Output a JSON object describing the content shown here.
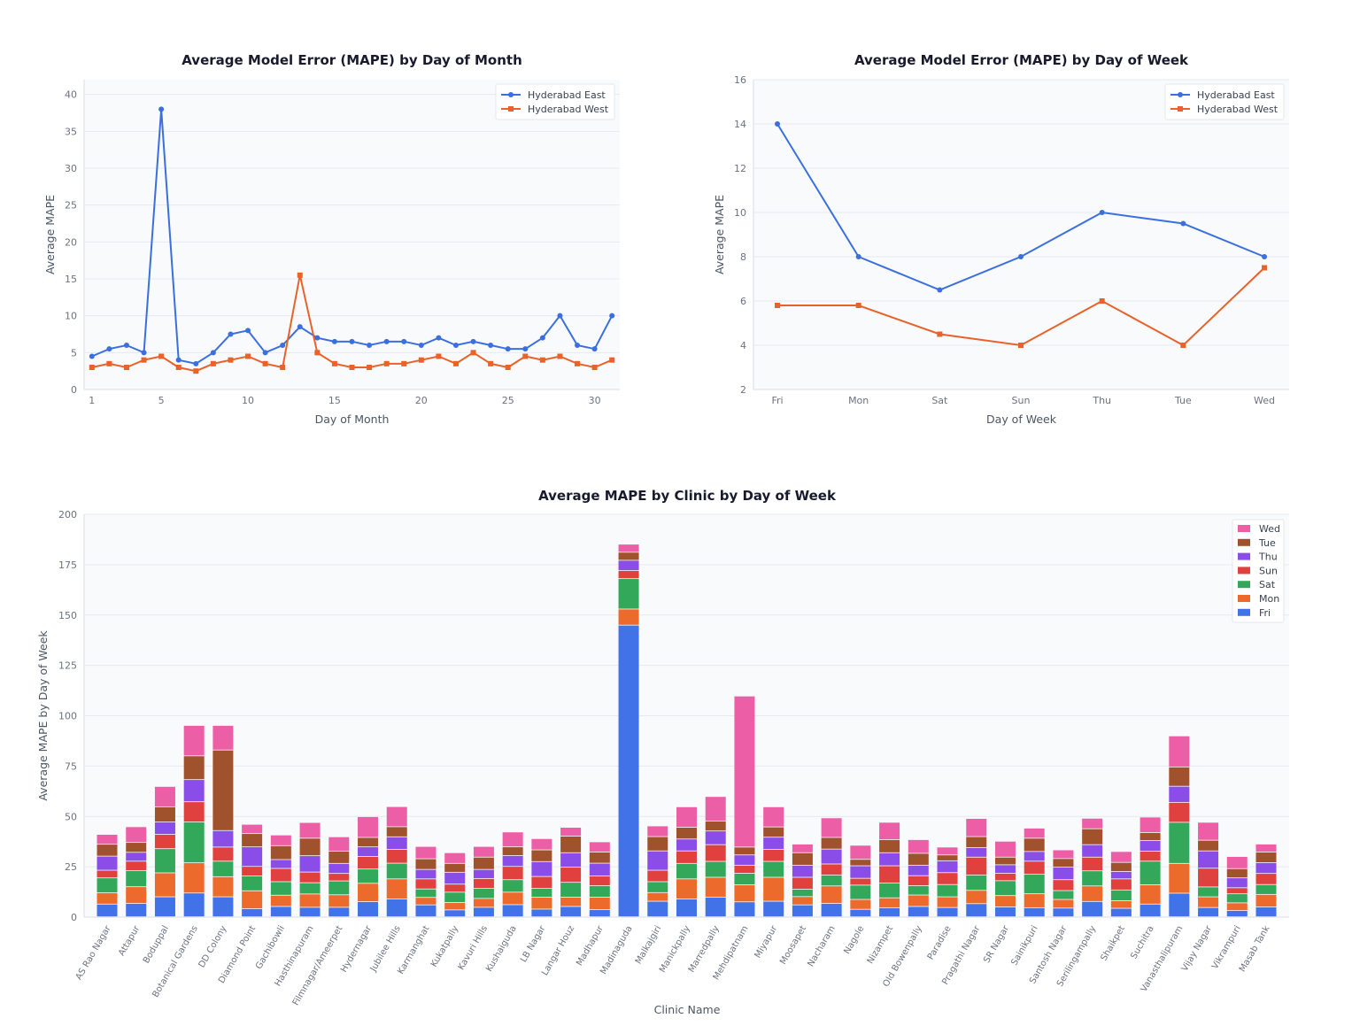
{
  "chart_data": [
    {
      "type": "line",
      "title": "Average Model Error (MAPE) by Day of Month",
      "xlabel": "Day of Month",
      "ylabel": "Average MAPE",
      "xlim": [
        0.55,
        31.45
      ],
      "ylim": [
        0,
        42
      ],
      "xticks": [
        1,
        5,
        10,
        15,
        20,
        25,
        30
      ],
      "yticks": [
        0,
        5,
        10,
        15,
        20,
        25,
        30,
        35,
        40
      ],
      "grid": true,
      "legend": "top-right",
      "x": [
        1,
        2,
        3,
        4,
        5,
        6,
        7,
        8,
        9,
        10,
        11,
        12,
        13,
        14,
        15,
        16,
        17,
        18,
        19,
        20,
        21,
        22,
        23,
        24,
        25,
        26,
        27,
        28,
        29,
        30,
        31
      ],
      "series": [
        {
          "name": "Hyderabad East",
          "color": "#3b6fe0",
          "marker": "circle",
          "values": [
            4.5,
            5.5,
            6,
            5,
            38,
            4,
            3.5,
            5,
            7.5,
            8,
            5,
            6,
            8.5,
            7,
            6.5,
            6.5,
            6,
            6.5,
            6.5,
            6,
            7,
            6,
            6.5,
            6,
            5.5,
            5.5,
            7,
            10,
            6,
            5.5,
            10
          ]
        },
        {
          "name": "Hyderabad West",
          "color": "#e8622a",
          "marker": "square",
          "values": [
            3,
            3.5,
            3,
            4,
            4.5,
            3,
            2.5,
            3.5,
            4,
            4.5,
            3.5,
            3,
            15.5,
            5,
            3.5,
            3,
            3,
            3.5,
            3.5,
            4,
            4.5,
            3.5,
            5,
            3.5,
            3,
            4.5,
            4,
            4.5,
            3.5,
            3,
            4
          ]
        }
      ]
    },
    {
      "type": "line",
      "title": "Average Model Error (MAPE) by Day of Week",
      "xlabel": "Day of Week",
      "ylabel": "Average MAPE",
      "ylim": [
        2,
        16
      ],
      "yticks": [
        2,
        4,
        6,
        8,
        10,
        12,
        14,
        16
      ],
      "grid": true,
      "legend": "top-right",
      "categories": [
        "Fri",
        "Mon",
        "Sat",
        "Sun",
        "Thu",
        "Tue",
        "Wed"
      ],
      "series": [
        {
          "name": "Hyderabad East",
          "color": "#3b6fe0",
          "marker": "circle",
          "values": [
            14,
            8,
            6.5,
            8,
            10,
            9.5,
            8
          ]
        },
        {
          "name": "Hyderabad West",
          "color": "#e8622a",
          "marker": "square",
          "values": [
            5.8,
            5.8,
            4.5,
            4,
            6,
            4,
            7.5
          ]
        }
      ]
    },
    {
      "type": "bar",
      "stacked": true,
      "title": "Average MAPE by Clinic by Day of Week",
      "xlabel": "Clinic Name",
      "ylabel": "Average MAPE by Day of Week",
      "ylim": [
        0,
        200
      ],
      "yticks": [
        0,
        25,
        50,
        75,
        100,
        125,
        150,
        175,
        200
      ],
      "grid": true,
      "legend": "top-right",
      "legend_order": [
        "Wed",
        "Tue",
        "Thu",
        "Sun",
        "Sat",
        "Mon",
        "Fri"
      ],
      "categories": [
        "AS Rao Nagar",
        "Attapur",
        "Boduppal",
        "Botanical Gardens",
        "DD Colony",
        "Diamond Point",
        "Gachibowli",
        "Hasthinapuram",
        "Filmnagar/Ameerpet",
        "Hydernagar",
        "Jubilee Hills",
        "Karmanghat",
        "Kukatpally",
        "Kavuri Hills",
        "Kushaiguda",
        "LB Nagar",
        "Langar Houz",
        "Madhapur",
        "Madinaguda",
        "Malkajgiri",
        "Manickpally",
        "Marredpally",
        "Mehdipatnam",
        "Miyapur",
        "Moosapet",
        "Nacharam",
        "Nagole",
        "Nizampet",
        "Old Bowenpally",
        "Paradise",
        "Pragathi Nagar",
        "SR Nagar",
        "Sainikpuri",
        "Santosh Nagar",
        "Serilingampally",
        "Shaikpet",
        "Suchitra",
        "Vanasthalipuram",
        "Vijay Nagar",
        "Vikrampuri",
        "Masab Tank"
      ],
      "series": [
        {
          "name": "Fri",
          "color": "#4272e8",
          "values": [
            6.3,
            6.6,
            9.9,
            11.8,
            9.9,
            4,
            5.1,
            4.7,
            4.7,
            7.5,
            8.8,
            5.9,
            3.4,
            4.7,
            6,
            3.8,
            5.1,
            3.5,
            144.8,
            7.7,
            8.8,
            9.7,
            7.4,
            7.7,
            5.9,
            6.6,
            3.7,
            4.5,
            5.1,
            4.6,
            6.5,
            4.9,
            4.5,
            4.3,
            7.6,
            4.2,
            6.3,
            11.7,
            4.6,
            3.1,
            4.9
          ]
        },
        {
          "name": "Mon",
          "color": "#ec6a2c",
          "values": [
            5.6,
            8.3,
            11.9,
            15,
            10,
            8.9,
            5.6,
            6.6,
            6.2,
            9.1,
            10,
            3.7,
            3.7,
            4.4,
            6.2,
            5.9,
            4.6,
            6.2,
            8,
            4.3,
            10,
            9.9,
            8.5,
            11.9,
            4.1,
            8.7,
            4.9,
            4.9,
            5.7,
            5.3,
            6.6,
            5.6,
            6.9,
            4.3,
            7.7,
            3.8,
            9.6,
            14.8,
            5.3,
            3.8,
            6.2
          ]
        },
        {
          "name": "Sat",
          "color": "#33a85a",
          "values": [
            7.4,
            8,
            12,
            20.3,
            7.7,
            7.4,
            6.7,
            5.6,
            6.9,
            7.1,
            7.8,
            4.2,
            5.1,
            5,
            6.2,
            4.4,
            7.4,
            5.7,
            15.1,
            5.4,
            7.7,
            7.9,
            5.7,
            7.9,
            3.7,
            5.4,
            7.1,
            7.3,
            4.6,
            6.1,
            7.6,
            7.4,
            9.7,
            4.4,
            7.5,
            5.3,
            11.7,
            20.4,
            4.9,
            4.5,
            4.9
          ]
        },
        {
          "name": "Sun",
          "color": "#e0413e",
          "values": [
            3.8,
            4.7,
            7.1,
            10,
            7,
            4.7,
            6.6,
            5.3,
            3.7,
            6.2,
            6.9,
            5,
            4,
            4.9,
            6.6,
            5.9,
            7.5,
            4.9,
            4,
            5.7,
            6.2,
            8.3,
            4,
            6,
            5.9,
            5.5,
            3.4,
            8.6,
            5,
            5.9,
            8.9,
            3.7,
            6.5,
            5.4,
            6.8,
            5.5,
            5,
            9.9,
            9.3,
            3,
            5.5
          ]
        },
        {
          "name": "Thu",
          "color": "#8b4de8",
          "values": [
            7,
            4.4,
            6.2,
            11,
            8.2,
            9.7,
            4.4,
            8.1,
            5,
            4.8,
            6.2,
            4.7,
            5.9,
            4.5,
            5.4,
            7.4,
            7.2,
            6.3,
            5.1,
            9.6,
            5.9,
            6.8,
            5.1,
            6,
            6,
            7.4,
            6.2,
            6.5,
            5.2,
            5.9,
            4.7,
            4.2,
            4.8,
            6.3,
            6.2,
            3.7,
            5.2,
            8,
            8.6,
            4.9,
            5.4
          ]
        },
        {
          "name": "Tue",
          "color": "#a0522d",
          "values": [
            5.9,
            4.9,
            7.5,
            11.8,
            40,
            6.6,
            6.9,
            8.7,
            6.1,
            4.7,
            5,
            5.3,
            4.4,
            6.1,
            4.3,
            5.8,
            8.2,
            5.5,
            4,
            7.1,
            5.8,
            4.9,
            3.9,
            5.1,
            6.2,
            5.8,
            3.2,
            6.5,
            5.9,
            2.9,
            5.5,
            3.8,
            6.6,
            4.2,
            7.9,
            4.5,
            4,
            9.6,
            5.3,
            4.6,
            5.2
          ]
        },
        {
          "name": "Wed",
          "color": "#ec5fa6",
          "values": [
            4.9,
            7.8,
            10.1,
            15.1,
            12.2,
            4.6,
            5.3,
            7.8,
            7.1,
            10.3,
            10,
            6.1,
            5.3,
            5.3,
            7.4,
            5.6,
            4.4,
            5.1,
            4,
            5.3,
            10.2,
            12.2,
            75,
            10,
            4.3,
            9.7,
            7,
            8.6,
            6.8,
            3.9,
            9,
            7.9,
            5,
            4.3,
            5.2,
            5.4,
            7.7,
            15.4,
            8.9,
            6,
            4
          ]
        }
      ]
    }
  ]
}
